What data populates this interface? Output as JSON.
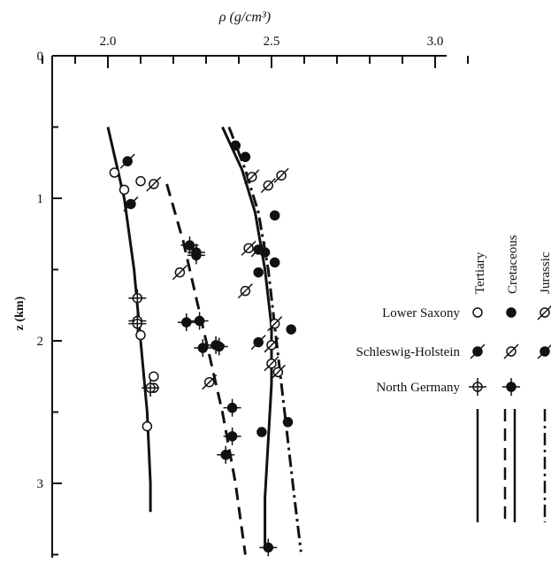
{
  "chart_data": {
    "type": "scatter",
    "xlabel": "ρ (g/cm³)",
    "ylabel": "z (km)",
    "xlim": [
      1.8,
      3.2
    ],
    "ylim": [
      3.55,
      0
    ],
    "x_axis_position": "top",
    "y_direction": "downward",
    "x_major_ticks": [
      2.0,
      2.5,
      3.0
    ],
    "x_minor_ticks": [
      1.8,
      1.9,
      2.1,
      2.2,
      2.3,
      2.4,
      2.6,
      2.7,
      2.8,
      2.9,
      3.1
    ],
    "y_major_ticks": [
      0,
      1,
      2,
      3
    ],
    "x_tick_labels": [
      "2.0",
      "2.5",
      "3.0"
    ],
    "y_tick_labels": [
      "0",
      "1",
      "2",
      "3"
    ],
    "legend": {
      "placement": "right",
      "columns": [
        "Tertiary",
        "Cretaceous",
        "Jurassic"
      ],
      "rows": [
        "Lower Saxony",
        "Schleswig-Holstein",
        "North Germany"
      ]
    },
    "series": [
      {
        "name": "Tertiary",
        "marker": "open-circle",
        "region": "Lower Saxony",
        "x": [
          2.02,
          2.05,
          2.1,
          2.14,
          2.1,
          2.14,
          2.12
        ],
        "y": [
          0.82,
          0.94,
          0.88,
          2.25,
          1.96,
          2.33,
          2.6
        ]
      },
      {
        "name": "Tertiary",
        "marker": "filled-circle-slash",
        "region": "Schleswig-Holstein",
        "x": [
          2.06,
          2.07
        ],
        "y": [
          0.74,
          1.04
        ]
      },
      {
        "name": "Tertiary",
        "marker": "open-circle-cross",
        "region": "North Germany",
        "x": [
          2.09,
          2.09,
          2.09,
          2.13
        ],
        "y": [
          1.7,
          1.86,
          1.88,
          2.33
        ]
      },
      {
        "name": "Cretaceous",
        "marker": "filled-circle",
        "region": "Lower Saxony",
        "x": [
          2.39,
          2.42,
          2.51,
          2.48,
          2.51,
          2.46,
          2.56,
          2.55,
          2.47
        ],
        "y": [
          0.63,
          0.71,
          1.12,
          1.38,
          1.45,
          1.52,
          1.92,
          2.57,
          2.64
        ]
      },
      {
        "name": "Cretaceous",
        "marker": "open-circle-slash",
        "region": "Schleswig-Holstein",
        "x": [
          2.44,
          2.49,
          2.53,
          2.43,
          2.42,
          2.51,
          2.5,
          2.5,
          2.52
        ],
        "y": [
          0.85,
          0.91,
          0.84,
          1.35,
          1.65,
          1.88,
          2.03,
          2.16,
          2.22
        ]
      },
      {
        "name": "Cretaceous",
        "marker": "filled-circle-cross",
        "region": "North Germany",
        "x": [
          2.25,
          2.27,
          2.27,
          2.24,
          2.28,
          2.33,
          2.34,
          2.29,
          2.38,
          2.38,
          2.36,
          2.49
        ],
        "y": [
          1.33,
          1.38,
          1.4,
          1.87,
          1.86,
          2.03,
          2.04,
          2.05,
          2.47,
          2.67,
          2.8,
          3.45
        ]
      },
      {
        "name": "Jurassic",
        "marker": "open-circle-slash",
        "region": "Lower Saxony",
        "x": [
          2.14,
          2.22,
          2.31
        ],
        "y": [
          0.9,
          1.52,
          2.29
        ]
      },
      {
        "name": "Jurassic",
        "marker": "filled-circle-slash",
        "region": "Schleswig-Holstein",
        "x": [
          2.46,
          2.46
        ],
        "y": [
          1.36,
          2.01
        ]
      }
    ],
    "trend_lines": [
      {
        "name": "Tertiary",
        "style": "solid",
        "x": [
          2.0,
          2.05,
          2.08,
          2.1,
          2.12,
          2.13,
          2.13
        ],
        "y": [
          0.5,
          1.0,
          1.5,
          2.0,
          2.5,
          3.0,
          3.2
        ]
      },
      {
        "name": "Cretaceous",
        "style": "dashed",
        "x": [
          2.18,
          2.23,
          2.27,
          2.31,
          2.35,
          2.39,
          2.42
        ],
        "y": [
          0.9,
          1.3,
          1.7,
          2.1,
          2.5,
          3.0,
          3.5
        ]
      },
      {
        "name": "Cretaceous",
        "style": "solid",
        "x": [
          2.35,
          2.41,
          2.45,
          2.48,
          2.5,
          2.5,
          2.49,
          2.48,
          2.48
        ],
        "y": [
          0.5,
          0.8,
          1.1,
          1.5,
          1.9,
          2.3,
          2.7,
          3.1,
          3.45
        ]
      },
      {
        "name": "Jurassic",
        "style": "dash-dot",
        "x": [
          2.37,
          2.42,
          2.46,
          2.49,
          2.51,
          2.53,
          2.55,
          2.57,
          2.59
        ],
        "y": [
          0.5,
          0.8,
          1.1,
          1.5,
          1.9,
          2.3,
          2.7,
          3.1,
          3.48
        ]
      }
    ]
  }
}
